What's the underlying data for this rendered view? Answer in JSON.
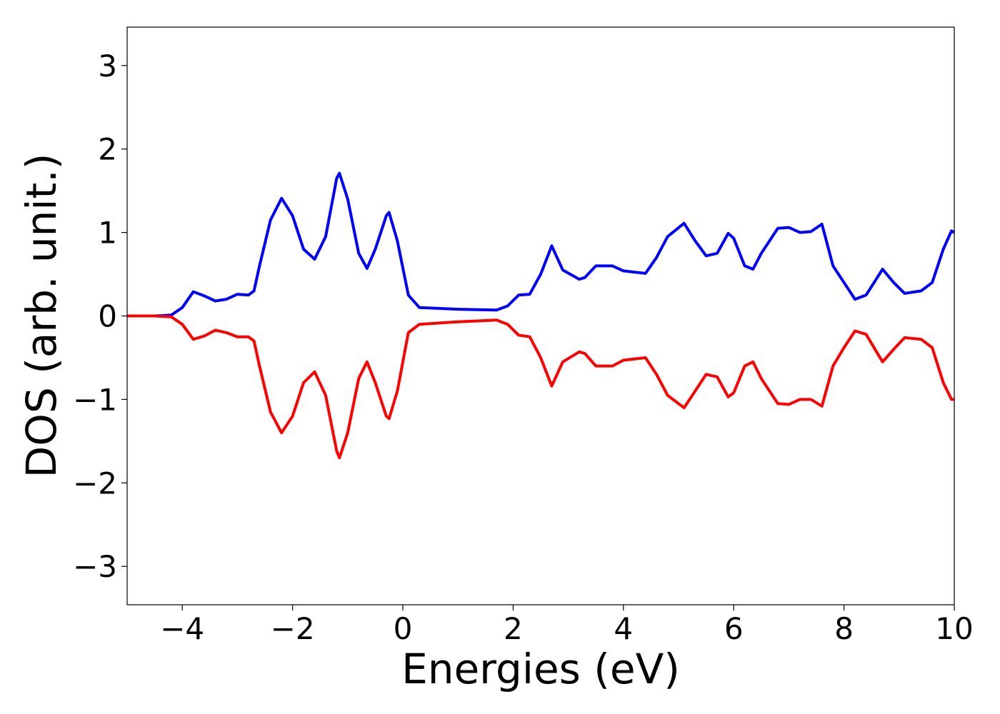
{
  "chart_data": {
    "type": "line",
    "xlabel": "Energies (eV)",
    "ylabel": "DOS (arb. unit.)",
    "x": [
      -5,
      -4.5,
      -4.2,
      -4.0,
      -3.8,
      -3.6,
      -3.4,
      -3.2,
      -3.0,
      -2.8,
      -2.7,
      -2.6,
      -2.4,
      -2.2,
      -2.0,
      -1.8,
      -1.6,
      -1.4,
      -1.2,
      -1.15,
      -1.0,
      -0.8,
      -0.65,
      -0.5,
      -0.3,
      -0.25,
      -0.1,
      0.1,
      0.3,
      1.0,
      1.7,
      1.9,
      2.1,
      2.3,
      2.5,
      2.7,
      2.9,
      3.2,
      3.3,
      3.5,
      3.8,
      4.0,
      4.4,
      4.6,
      4.8,
      5.1,
      5.3,
      5.5,
      5.7,
      5.9,
      6.0,
      6.2,
      6.35,
      6.5,
      6.8,
      7.0,
      7.2,
      7.4,
      7.6,
      7.8,
      8.0,
      8.2,
      8.4,
      8.7,
      8.9,
      9.1,
      9.4,
      9.6,
      9.8,
      9.95,
      10
    ],
    "series": [
      {
        "color": "#0000ff",
        "values": [
          0,
          0,
          0.01,
          0.1,
          0.29,
          0.24,
          0.18,
          0.2,
          0.26,
          0.25,
          0.3,
          0.6,
          1.15,
          1.41,
          1.2,
          0.8,
          0.68,
          0.95,
          1.65,
          1.71,
          1.4,
          0.75,
          0.57,
          0.8,
          1.2,
          1.24,
          0.9,
          0.25,
          0.1,
          0.08,
          0.07,
          0.12,
          0.25,
          0.26,
          0.5,
          0.84,
          0.55,
          0.44,
          0.46,
          0.6,
          0.6,
          0.54,
          0.51,
          0.7,
          0.95,
          1.11,
          0.9,
          0.72,
          0.75,
          0.99,
          0.93,
          0.6,
          0.56,
          0.75,
          1.05,
          1.06,
          1.0,
          1.01,
          1.1,
          0.6,
          0.4,
          0.2,
          0.25,
          0.56,
          0.4,
          0.27,
          0.3,
          0.4,
          0.8,
          1.02,
          1.0
        ]
      },
      {
        "color": "#ff0000",
        "values": [
          0,
          0,
          -0.01,
          -0.1,
          -0.28,
          -0.24,
          -0.17,
          -0.2,
          -0.25,
          -0.25,
          -0.3,
          -0.6,
          -1.15,
          -1.4,
          -1.2,
          -0.8,
          -0.67,
          -0.95,
          -1.62,
          -1.7,
          -1.4,
          -0.75,
          -0.55,
          -0.8,
          -1.2,
          -1.23,
          -0.9,
          -0.2,
          -0.1,
          -0.07,
          -0.05,
          -0.1,
          -0.23,
          -0.25,
          -0.5,
          -0.84,
          -0.55,
          -0.43,
          -0.45,
          -0.6,
          -0.6,
          -0.53,
          -0.5,
          -0.7,
          -0.95,
          -1.1,
          -0.9,
          -0.7,
          -0.73,
          -0.97,
          -0.92,
          -0.6,
          -0.55,
          -0.75,
          -1.05,
          -1.06,
          -1.0,
          -1.0,
          -1.08,
          -0.6,
          -0.38,
          -0.18,
          -0.22,
          -0.55,
          -0.4,
          -0.26,
          -0.28,
          -0.38,
          -0.8,
          -1.0,
          -1.0
        ]
      }
    ],
    "xlim": [
      -5,
      10
    ],
    "ylim": [
      -3.46,
      3.46
    ],
    "xticks": [
      {
        "value": -4,
        "label": "−4"
      },
      {
        "value": -2,
        "label": "−2"
      },
      0,
      2,
      4,
      6,
      8,
      10
    ],
    "yticks": [
      {
        "value": -3,
        "label": "−3"
      },
      {
        "value": -2,
        "label": "−2"
      },
      {
        "value": -1,
        "label": "−1"
      },
      0,
      1,
      2,
      3
    ]
  }
}
